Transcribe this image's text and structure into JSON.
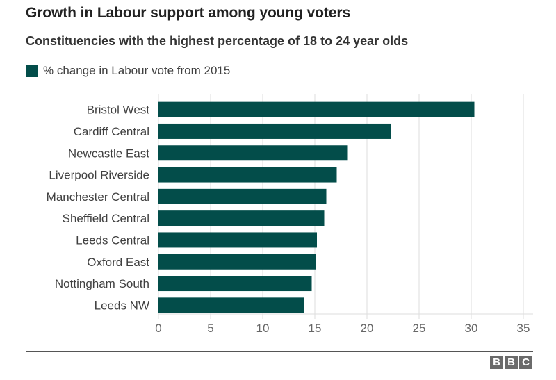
{
  "header": {
    "title": "Growth in Labour support among young voters",
    "subtitle": "Constituencies with the highest percentage of 18 to 24 year olds"
  },
  "colors": {
    "bar": "#034d4a",
    "grid": "#dddddd",
    "tick_text": "#666666",
    "label_text": "#404040"
  },
  "footer": {
    "logo_letters": [
      "B",
      "B",
      "C"
    ]
  },
  "chart_data": {
    "type": "bar",
    "orientation": "horizontal",
    "title": "Growth in Labour support among young voters",
    "subtitle": "Constituencies with the highest percentage of 18 to 24 year olds",
    "xlabel": "",
    "ylabel": "",
    "xlim": [
      0,
      35
    ],
    "xticks": [
      0,
      5,
      10,
      15,
      20,
      25,
      30,
      35
    ],
    "grid": true,
    "legend": {
      "placement": "top-left",
      "entries": [
        "% change in Labour vote from 2015"
      ]
    },
    "categories": [
      "Bristol West",
      "Cardiff Central",
      "Newcastle East",
      "Liverpool Riverside",
      "Manchester Central",
      "Sheffield Central",
      "Leeds Central",
      "Oxford East",
      "Nottingham South",
      "Leeds NW"
    ],
    "series": [
      {
        "name": "% change in Labour vote from 2015",
        "values": [
          30.3,
          22.3,
          18.1,
          17.1,
          16.1,
          15.9,
          15.2,
          15.1,
          14.7,
          14.0
        ]
      }
    ]
  }
}
